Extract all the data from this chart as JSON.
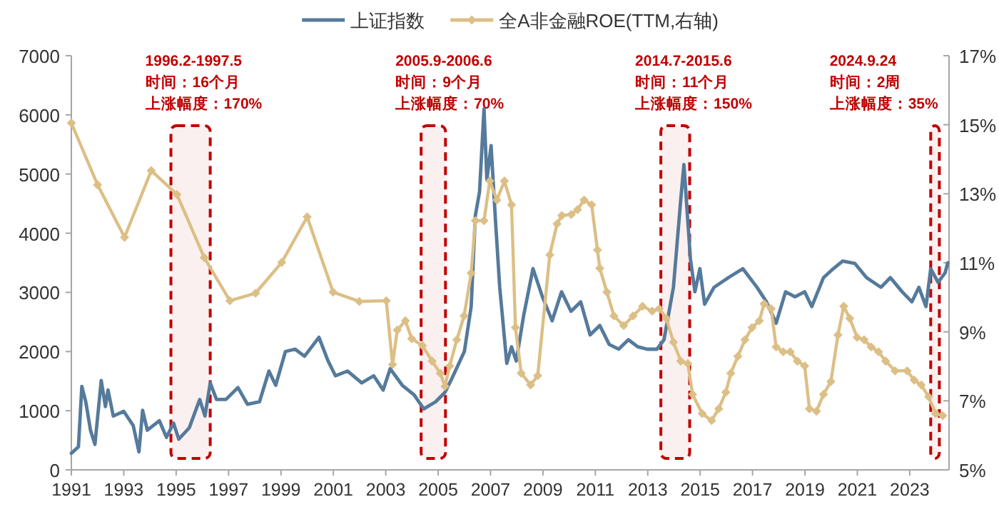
{
  "chart_data": {
    "type": "line",
    "legend": "top",
    "xlim": [
      1991,
      2024.5
    ],
    "xticks": [
      1991,
      1993,
      1995,
      1997,
      1999,
      2001,
      2003,
      2005,
      2007,
      2009,
      2011,
      2013,
      2015,
      2017,
      2019,
      2021,
      2023
    ],
    "ylim": [
      0,
      7000
    ],
    "yticks": [
      0,
      1000,
      2000,
      3000,
      4000,
      5000,
      6000,
      7000
    ],
    "y2lim": [
      5,
      17
    ],
    "y2ticks": [
      {
        "value": 5,
        "label": "5%"
      },
      {
        "value": 7,
        "label": "7%"
      },
      {
        "value": 9,
        "label": "9%"
      },
      {
        "value": 11,
        "label": "11%"
      },
      {
        "value": 13,
        "label": "13%"
      },
      {
        "value": 15,
        "label": "15%"
      },
      {
        "value": 17,
        "label": "17%"
      }
    ],
    "grid": false,
    "series": [
      {
        "name": "上证指数",
        "color": "#557a9b",
        "marker": "none",
        "x": [
          1991.0,
          1991.27,
          1991.4,
          1991.55,
          1991.73,
          1991.9,
          1992.14,
          1992.3,
          1992.4,
          1992.6,
          1993.0,
          1993.36,
          1993.58,
          1993.72,
          1993.9,
          1994.36,
          1994.63,
          1994.9,
          1995.1,
          1995.5,
          1995.9,
          1996.1,
          1996.3,
          1996.54,
          1996.9,
          1997.36,
          1997.72,
          1998.18,
          1998.54,
          1998.8,
          1999.17,
          1999.54,
          1999.9,
          2000.45,
          2000.8,
          2001.08,
          2001.54,
          2002.08,
          2002.54,
          2002.9,
          2003.17,
          2003.63,
          2004.08,
          2004.45,
          2004.9,
          2005.26,
          2005.53,
          2006.0,
          2006.26,
          2006.42,
          2006.58,
          2006.75,
          2006.86,
          2007.02,
          2007.19,
          2007.35,
          2007.62,
          2007.8,
          2007.98,
          2008.26,
          2008.62,
          2008.98,
          2009.35,
          2009.71,
          2010.07,
          2010.44,
          2010.8,
          2011.17,
          2011.53,
          2011.89,
          2012.26,
          2012.62,
          2012.98,
          2013.35,
          2013.62,
          2013.98,
          2014.25,
          2014.38,
          2014.63,
          2014.8,
          2014.99,
          2015.17,
          2015.53,
          2016.08,
          2016.63,
          2017.17,
          2017.53,
          2017.9,
          2018.26,
          2018.62,
          2018.99,
          2019.26,
          2019.71,
          2020.08,
          2020.44,
          2020.9,
          2021.35,
          2021.9,
          2022.26,
          2022.71,
          2023.08,
          2023.35,
          2023.62,
          2023.8,
          2024.08,
          2024.35,
          2024.45
        ],
        "values": [
          280,
          390,
          1410,
          1150,
          670,
          430,
          1510,
          1070,
          1350,
          910,
          990,
          750,
          305,
          1005,
          670,
          830,
          550,
          790,
          520,
          710,
          1190,
          910,
          1470,
          1190,
          1190,
          1390,
          1110,
          1150,
          1670,
          1430,
          2000,
          2040,
          1920,
          2240,
          1840,
          1590,
          1670,
          1470,
          1590,
          1350,
          1710,
          1430,
          1270,
          1030,
          1150,
          1310,
          1550,
          2000,
          2760,
          4300,
          4700,
          6100,
          4900,
          5480,
          4200,
          3085,
          1800,
          2080,
          1840,
          2600,
          3400,
          2925,
          2520,
          3010,
          2680,
          2840,
          2280,
          2440,
          2120,
          2040,
          2200,
          2080,
          2040,
          2040,
          2200,
          3085,
          4520,
          5160,
          3560,
          3010,
          3400,
          2800,
          3085,
          3250,
          3400,
          3085,
          2840,
          2480,
          3010,
          2925,
          3010,
          2760,
          3250,
          3400,
          3530,
          3490,
          3250,
          3085,
          3250,
          3010,
          2840,
          3085,
          2760,
          3400,
          3170,
          3330,
          3500
        ]
      },
      {
        "name": "全A非金融ROE(TTM,右轴)",
        "color": "#dcbf86",
        "axis": "y2",
        "marker": "diamond",
        "x": [
          1991.0,
          1992.0,
          1993.03,
          1994.05,
          1995.03,
          1996.07,
          1997.05,
          1998.03,
          1999.03,
          2000.0,
          2000.99,
          2001.99,
          2003.02,
          2003.26,
          2003.44,
          2003.75,
          2003.99,
          2004.4,
          2004.77,
          2005.08,
          2005.26,
          2005.44,
          2005.71,
          2005.99,
          2006.26,
          2006.42,
          2006.75,
          2006.97,
          2007.24,
          2007.53,
          2007.8,
          2007.95,
          2008.17,
          2008.53,
          2008.8,
          2009.26,
          2009.54,
          2009.72,
          2010.08,
          2010.32,
          2010.57,
          2010.86,
          2011.08,
          2011.17,
          2011.44,
          2011.71,
          2012.08,
          2012.44,
          2012.8,
          2013.17,
          2013.44,
          2013.71,
          2013.98,
          2014.26,
          2014.53,
          2014.71,
          2015.08,
          2015.44,
          2015.71,
          2015.98,
          2016.17,
          2016.44,
          2016.71,
          2016.98,
          2017.26,
          2017.44,
          2017.71,
          2017.9,
          2018.17,
          2018.44,
          2018.71,
          2018.99,
          2019.17,
          2019.44,
          2019.71,
          2019.99,
          2020.26,
          2020.48,
          2020.71,
          2020.99,
          2021.26,
          2021.53,
          2021.81,
          2022.08,
          2022.44,
          2022.9,
          2023.17,
          2023.44,
          2023.72,
          2023.99,
          2024.26
        ],
        "values": [
          15.05,
          13.26,
          11.74,
          13.67,
          12.98,
          11.15,
          9.9,
          10.12,
          11.01,
          12.33,
          10.15,
          9.88,
          9.9,
          8.05,
          9.05,
          9.32,
          8.8,
          8.6,
          8.15,
          7.8,
          7.42,
          8.01,
          8.77,
          9.46,
          10.7,
          12.22,
          12.22,
          13.37,
          12.82,
          13.37,
          12.68,
          9.12,
          7.8,
          7.46,
          7.73,
          11.23,
          12.13,
          12.37,
          12.4,
          12.54,
          12.82,
          12.68,
          11.37,
          10.84,
          10.15,
          9.46,
          9.18,
          9.46,
          9.74,
          9.6,
          9.67,
          9.39,
          8.7,
          8.15,
          8.08,
          7.19,
          6.63,
          6.43,
          6.77,
          7.25,
          7.8,
          8.29,
          8.77,
          9.12,
          9.32,
          9.81,
          9.67,
          8.56,
          8.42,
          8.42,
          8.15,
          8.01,
          6.77,
          6.7,
          7.19,
          7.56,
          8.91,
          9.74,
          9.39,
          8.84,
          8.77,
          8.56,
          8.42,
          8.15,
          7.87,
          7.87,
          7.6,
          7.46,
          7.12,
          6.63,
          6.57
        ]
      }
    ],
    "bands": [
      {
        "axis": "x",
        "from": 1994.8,
        "to": 1996.3,
        "label": "1996.2-1997.5",
        "color": "#c00000"
      },
      {
        "axis": "x",
        "from": 2004.35,
        "to": 2005.28,
        "label": "2005.9-2006.6",
        "color": "#c00000"
      },
      {
        "axis": "x",
        "from": 2013.5,
        "to": 2014.6,
        "label": "2014.7-2015.6",
        "color": "#c00000"
      },
      {
        "axis": "x",
        "from": 2023.8,
        "to": 2024.13,
        "label": "2024.9.24",
        "color": "#c00000"
      }
    ],
    "annotations": [
      "时间：16个月",
      "上涨幅度：170%",
      "时间：9个月",
      "上涨幅度：70%",
      "时间：11个月",
      "上涨幅度：150%",
      "时间：2周",
      "上涨幅度：35%"
    ]
  }
}
